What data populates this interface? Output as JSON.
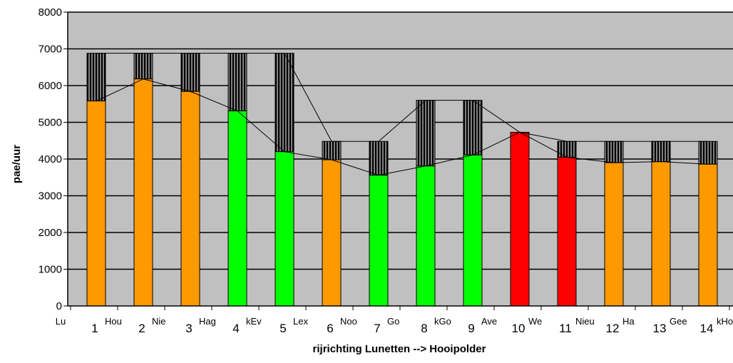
{
  "chart_data": {
    "type": "bar",
    "xlabel": "rijrichting Lunetten --> Hooipolder",
    "ylabel": "pae/uur",
    "ylim": [
      0,
      8000
    ],
    "yticks": [
      "0",
      "1000",
      "2000",
      "3000",
      "4000",
      "5000",
      "6000",
      "7000",
      "8000"
    ],
    "grid": true,
    "start_label": "Lu",
    "categories": [
      {
        "num": "1",
        "name": "Hou"
      },
      {
        "num": "2",
        "name": "Nie"
      },
      {
        "num": "3",
        "name": "Hag"
      },
      {
        "num": "4",
        "name": "kEv"
      },
      {
        "num": "5",
        "name": "Lex"
      },
      {
        "num": "6",
        "name": "Noo"
      },
      {
        "num": "7",
        "name": "Go"
      },
      {
        "num": "8",
        "name": "kGo"
      },
      {
        "num": "9",
        "name": "Ave"
      },
      {
        "num": "10",
        "name": "We"
      },
      {
        "num": "11",
        "name": "Nieu"
      },
      {
        "num": "12",
        "name": "Ha"
      },
      {
        "num": "13",
        "name": "Gee"
      },
      {
        "num": "14",
        "name": "kHo"
      }
    ],
    "series": [
      {
        "values": [
          5580,
          6180,
          5840,
          5310,
          4200,
          3980,
          3560,
          3810,
          4110,
          4730,
          4050,
          3900,
          3930,
          3860
        ]
      },
      {
        "values": [
          6880,
          6880,
          6880,
          6880,
          6880,
          4480,
          4480,
          5600,
          5600,
          4730,
          4480,
          4480,
          4480,
          4480
        ]
      }
    ],
    "bar_colors": [
      "#ff9900",
      "#ff9900",
      "#ff9900",
      "#00ff00",
      "#00ff00",
      "#ff9900",
      "#00ff00",
      "#00ff00",
      "#00ff00",
      "#ff0000",
      "#ff0000",
      "#ff9900",
      "#ff9900",
      "#ff9900"
    ],
    "colors": {
      "plot_background": "#c0c0c0",
      "capacity_fill": "#000000",
      "capacity_stripe": "#808080",
      "line": "#000000"
    }
  }
}
